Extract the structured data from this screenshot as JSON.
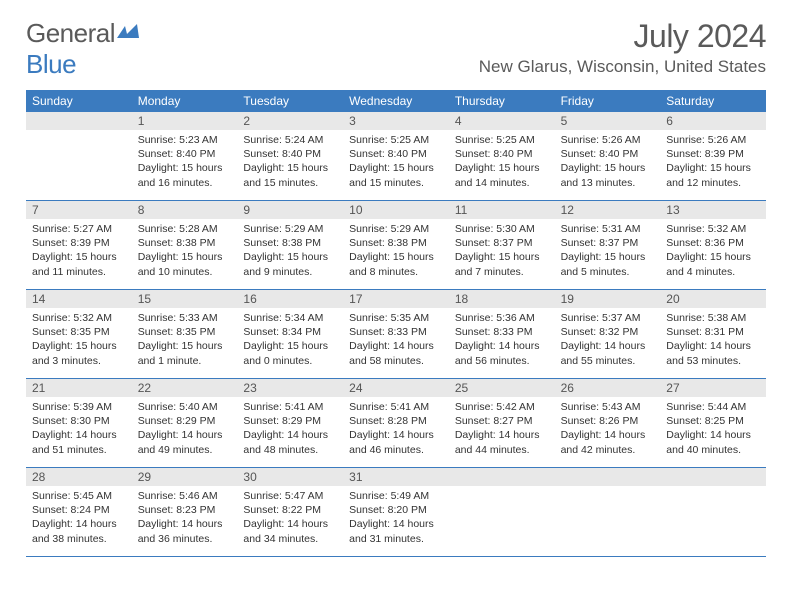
{
  "logo": {
    "text1": "General",
    "text2": "Blue"
  },
  "title": {
    "month": "July 2024",
    "location": "New Glarus, Wisconsin, United States"
  },
  "colors": {
    "header_bg": "#3b7bbf",
    "header_text": "#ffffff",
    "daynum_bg": "#e8e8e8",
    "text": "#333333",
    "border": "#3b7bbf",
    "logo_gray": "#5a5a5a",
    "logo_blue": "#3b7bbf"
  },
  "dayNames": [
    "Sunday",
    "Monday",
    "Tuesday",
    "Wednesday",
    "Thursday",
    "Friday",
    "Saturday"
  ],
  "weeks": [
    [
      {
        "num": "",
        "sunrise": "",
        "sunset": "",
        "daylight1": "",
        "daylight2": ""
      },
      {
        "num": "1",
        "sunrise": "Sunrise: 5:23 AM",
        "sunset": "Sunset: 8:40 PM",
        "daylight1": "Daylight: 15 hours",
        "daylight2": "and 16 minutes."
      },
      {
        "num": "2",
        "sunrise": "Sunrise: 5:24 AM",
        "sunset": "Sunset: 8:40 PM",
        "daylight1": "Daylight: 15 hours",
        "daylight2": "and 15 minutes."
      },
      {
        "num": "3",
        "sunrise": "Sunrise: 5:25 AM",
        "sunset": "Sunset: 8:40 PM",
        "daylight1": "Daylight: 15 hours",
        "daylight2": "and 15 minutes."
      },
      {
        "num": "4",
        "sunrise": "Sunrise: 5:25 AM",
        "sunset": "Sunset: 8:40 PM",
        "daylight1": "Daylight: 15 hours",
        "daylight2": "and 14 minutes."
      },
      {
        "num": "5",
        "sunrise": "Sunrise: 5:26 AM",
        "sunset": "Sunset: 8:40 PM",
        "daylight1": "Daylight: 15 hours",
        "daylight2": "and 13 minutes."
      },
      {
        "num": "6",
        "sunrise": "Sunrise: 5:26 AM",
        "sunset": "Sunset: 8:39 PM",
        "daylight1": "Daylight: 15 hours",
        "daylight2": "and 12 minutes."
      }
    ],
    [
      {
        "num": "7",
        "sunrise": "Sunrise: 5:27 AM",
        "sunset": "Sunset: 8:39 PM",
        "daylight1": "Daylight: 15 hours",
        "daylight2": "and 11 minutes."
      },
      {
        "num": "8",
        "sunrise": "Sunrise: 5:28 AM",
        "sunset": "Sunset: 8:38 PM",
        "daylight1": "Daylight: 15 hours",
        "daylight2": "and 10 minutes."
      },
      {
        "num": "9",
        "sunrise": "Sunrise: 5:29 AM",
        "sunset": "Sunset: 8:38 PM",
        "daylight1": "Daylight: 15 hours",
        "daylight2": "and 9 minutes."
      },
      {
        "num": "10",
        "sunrise": "Sunrise: 5:29 AM",
        "sunset": "Sunset: 8:38 PM",
        "daylight1": "Daylight: 15 hours",
        "daylight2": "and 8 minutes."
      },
      {
        "num": "11",
        "sunrise": "Sunrise: 5:30 AM",
        "sunset": "Sunset: 8:37 PM",
        "daylight1": "Daylight: 15 hours",
        "daylight2": "and 7 minutes."
      },
      {
        "num": "12",
        "sunrise": "Sunrise: 5:31 AM",
        "sunset": "Sunset: 8:37 PM",
        "daylight1": "Daylight: 15 hours",
        "daylight2": "and 5 minutes."
      },
      {
        "num": "13",
        "sunrise": "Sunrise: 5:32 AM",
        "sunset": "Sunset: 8:36 PM",
        "daylight1": "Daylight: 15 hours",
        "daylight2": "and 4 minutes."
      }
    ],
    [
      {
        "num": "14",
        "sunrise": "Sunrise: 5:32 AM",
        "sunset": "Sunset: 8:35 PM",
        "daylight1": "Daylight: 15 hours",
        "daylight2": "and 3 minutes."
      },
      {
        "num": "15",
        "sunrise": "Sunrise: 5:33 AM",
        "sunset": "Sunset: 8:35 PM",
        "daylight1": "Daylight: 15 hours",
        "daylight2": "and 1 minute."
      },
      {
        "num": "16",
        "sunrise": "Sunrise: 5:34 AM",
        "sunset": "Sunset: 8:34 PM",
        "daylight1": "Daylight: 15 hours",
        "daylight2": "and 0 minutes."
      },
      {
        "num": "17",
        "sunrise": "Sunrise: 5:35 AM",
        "sunset": "Sunset: 8:33 PM",
        "daylight1": "Daylight: 14 hours",
        "daylight2": "and 58 minutes."
      },
      {
        "num": "18",
        "sunrise": "Sunrise: 5:36 AM",
        "sunset": "Sunset: 8:33 PM",
        "daylight1": "Daylight: 14 hours",
        "daylight2": "and 56 minutes."
      },
      {
        "num": "19",
        "sunrise": "Sunrise: 5:37 AM",
        "sunset": "Sunset: 8:32 PM",
        "daylight1": "Daylight: 14 hours",
        "daylight2": "and 55 minutes."
      },
      {
        "num": "20",
        "sunrise": "Sunrise: 5:38 AM",
        "sunset": "Sunset: 8:31 PM",
        "daylight1": "Daylight: 14 hours",
        "daylight2": "and 53 minutes."
      }
    ],
    [
      {
        "num": "21",
        "sunrise": "Sunrise: 5:39 AM",
        "sunset": "Sunset: 8:30 PM",
        "daylight1": "Daylight: 14 hours",
        "daylight2": "and 51 minutes."
      },
      {
        "num": "22",
        "sunrise": "Sunrise: 5:40 AM",
        "sunset": "Sunset: 8:29 PM",
        "daylight1": "Daylight: 14 hours",
        "daylight2": "and 49 minutes."
      },
      {
        "num": "23",
        "sunrise": "Sunrise: 5:41 AM",
        "sunset": "Sunset: 8:29 PM",
        "daylight1": "Daylight: 14 hours",
        "daylight2": "and 48 minutes."
      },
      {
        "num": "24",
        "sunrise": "Sunrise: 5:41 AM",
        "sunset": "Sunset: 8:28 PM",
        "daylight1": "Daylight: 14 hours",
        "daylight2": "and 46 minutes."
      },
      {
        "num": "25",
        "sunrise": "Sunrise: 5:42 AM",
        "sunset": "Sunset: 8:27 PM",
        "daylight1": "Daylight: 14 hours",
        "daylight2": "and 44 minutes."
      },
      {
        "num": "26",
        "sunrise": "Sunrise: 5:43 AM",
        "sunset": "Sunset: 8:26 PM",
        "daylight1": "Daylight: 14 hours",
        "daylight2": "and 42 minutes."
      },
      {
        "num": "27",
        "sunrise": "Sunrise: 5:44 AM",
        "sunset": "Sunset: 8:25 PM",
        "daylight1": "Daylight: 14 hours",
        "daylight2": "and 40 minutes."
      }
    ],
    [
      {
        "num": "28",
        "sunrise": "Sunrise: 5:45 AM",
        "sunset": "Sunset: 8:24 PM",
        "daylight1": "Daylight: 14 hours",
        "daylight2": "and 38 minutes."
      },
      {
        "num": "29",
        "sunrise": "Sunrise: 5:46 AM",
        "sunset": "Sunset: 8:23 PM",
        "daylight1": "Daylight: 14 hours",
        "daylight2": "and 36 minutes."
      },
      {
        "num": "30",
        "sunrise": "Sunrise: 5:47 AM",
        "sunset": "Sunset: 8:22 PM",
        "daylight1": "Daylight: 14 hours",
        "daylight2": "and 34 minutes."
      },
      {
        "num": "31",
        "sunrise": "Sunrise: 5:49 AM",
        "sunset": "Sunset: 8:20 PM",
        "daylight1": "Daylight: 14 hours",
        "daylight2": "and 31 minutes."
      },
      {
        "num": "",
        "sunrise": "",
        "sunset": "",
        "daylight1": "",
        "daylight2": ""
      },
      {
        "num": "",
        "sunrise": "",
        "sunset": "",
        "daylight1": "",
        "daylight2": ""
      },
      {
        "num": "",
        "sunrise": "",
        "sunset": "",
        "daylight1": "",
        "daylight2": ""
      }
    ]
  ]
}
